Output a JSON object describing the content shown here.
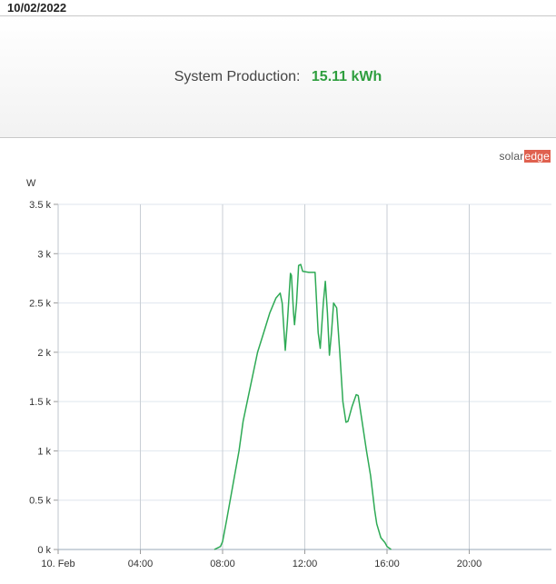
{
  "header": {
    "date": "10/02/2022"
  },
  "production": {
    "label": "System Production:",
    "value": "15.11 kWh",
    "value_color": "#2e9e3e"
  },
  "brand": {
    "part1": "solar",
    "part2": "edge",
    "accent": "#e0614f"
  },
  "chart_data": {
    "type": "line",
    "ylabel": "W",
    "ylim": [
      0,
      3500
    ],
    "xlim": [
      0,
      24
    ],
    "y_ticks": [
      {
        "value": 0,
        "label": "0 k"
      },
      {
        "value": 500,
        "label": "0.5 k"
      },
      {
        "value": 1000,
        "label": "1 k"
      },
      {
        "value": 1500,
        "label": "1.5 k"
      },
      {
        "value": 2000,
        "label": "2 k"
      },
      {
        "value": 2500,
        "label": "2.5 k"
      },
      {
        "value": 3000,
        "label": "3 k"
      },
      {
        "value": 3500,
        "label": "3.5 k"
      }
    ],
    "x_ticks": [
      {
        "value": 0,
        "label": "10. Feb"
      },
      {
        "value": 4,
        "label": "04:00"
      },
      {
        "value": 8,
        "label": "08:00"
      },
      {
        "value": 12,
        "label": "12:00"
      },
      {
        "value": 16,
        "label": "16:00"
      },
      {
        "value": 20,
        "label": "20:00"
      }
    ],
    "grid": true,
    "line_color": "#2eaa55",
    "series": [
      {
        "points": [
          [
            7.6,
            0
          ],
          [
            7.9,
            30
          ],
          [
            8.0,
            80
          ],
          [
            8.2,
            300
          ],
          [
            8.5,
            650
          ],
          [
            8.8,
            1000
          ],
          [
            9.0,
            1300
          ],
          [
            9.3,
            1600
          ],
          [
            9.7,
            2000
          ],
          [
            10.0,
            2200
          ],
          [
            10.3,
            2400
          ],
          [
            10.6,
            2550
          ],
          [
            10.8,
            2600
          ],
          [
            10.9,
            2500
          ],
          [
            11.05,
            2020
          ],
          [
            11.15,
            2300
          ],
          [
            11.3,
            2800
          ],
          [
            11.35,
            2780
          ],
          [
            11.45,
            2400
          ],
          [
            11.5,
            2280
          ],
          [
            11.6,
            2500
          ],
          [
            11.7,
            2880
          ],
          [
            11.8,
            2890
          ],
          [
            11.9,
            2820
          ],
          [
            12.2,
            2810
          ],
          [
            12.5,
            2810
          ],
          [
            12.65,
            2200
          ],
          [
            12.75,
            2040
          ],
          [
            12.9,
            2500
          ],
          [
            13.0,
            2720
          ],
          [
            13.1,
            2400
          ],
          [
            13.2,
            1970
          ],
          [
            13.3,
            2200
          ],
          [
            13.4,
            2500
          ],
          [
            13.55,
            2450
          ],
          [
            13.7,
            2000
          ],
          [
            13.85,
            1500
          ],
          [
            14.0,
            1290
          ],
          [
            14.1,
            1300
          ],
          [
            14.3,
            1450
          ],
          [
            14.5,
            1570
          ],
          [
            14.6,
            1560
          ],
          [
            14.75,
            1350
          ],
          [
            15.0,
            1000
          ],
          [
            15.2,
            750
          ],
          [
            15.4,
            400
          ],
          [
            15.5,
            260
          ],
          [
            15.7,
            120
          ],
          [
            15.9,
            70
          ],
          [
            16.0,
            30
          ],
          [
            16.2,
            0
          ]
        ]
      }
    ]
  }
}
